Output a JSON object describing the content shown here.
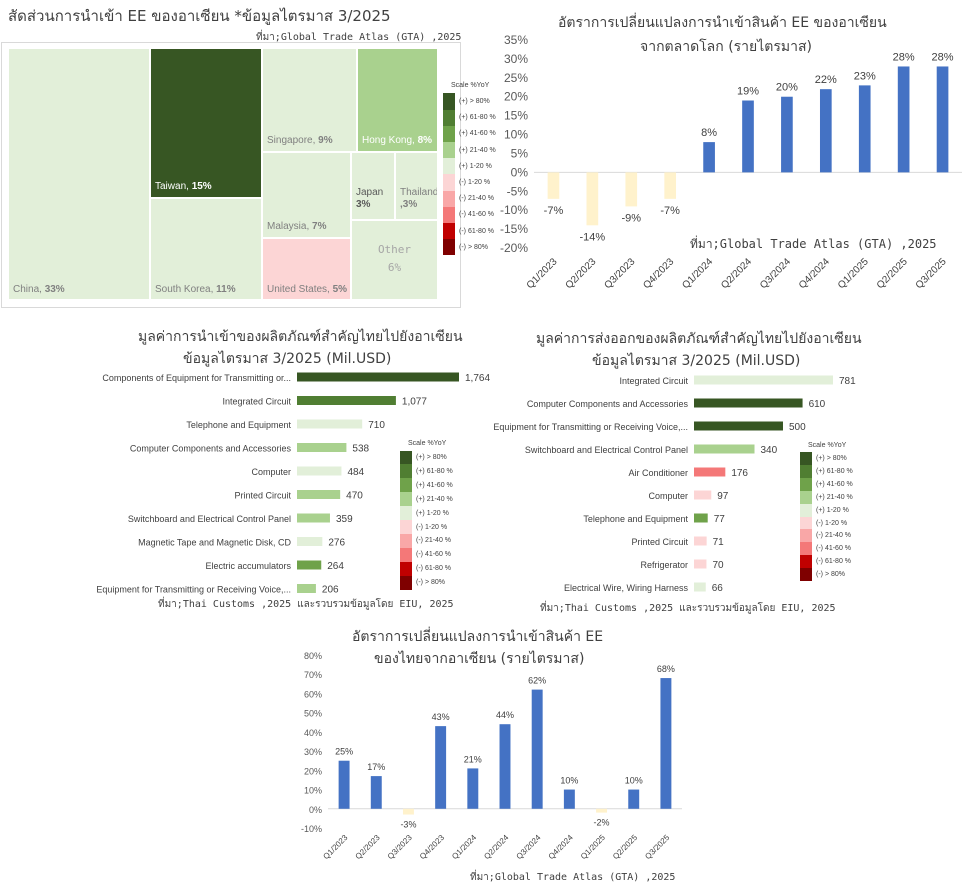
{
  "colors": {
    "pos_80": "#375623",
    "pos_61_80": "#507e32",
    "pos_41_60": "#6fa24a",
    "pos_21_40": "#a9d18e",
    "pos_1_20": "#e2efd9",
    "neg_1_20": "#fcd5d5",
    "neg_21_40": "#f9a7a7",
    "neg_41_60": "#f47878",
    "neg_61_80": "#c00000",
    "neg_80": "#7f0000",
    "bar_blue": "#4472c4",
    "bar_negative": "#fff2cc"
  },
  "scale_legend": {
    "title": "Scale %YoY",
    "items": [
      "(+) > 80%",
      "(+) 61-80 %",
      "(+) 41-60 %",
      "(+) 21-40 %",
      "(+) 1-20 %",
      "(-) 1-20 %",
      "(-) 21-40 %",
      "(-) 41-60 %",
      "(-) 61-80 %",
      "(-) > 80%"
    ],
    "items_alt": [
      "(+) > 80%",
      "(+) 61-80 %",
      "(+) 41-60 %",
      "(+) 21-40 %",
      "(+) 1-20 %",
      "(-) 1-20 %",
      "(-) 21-40 %",
      "(-) 41-60 %",
      "(-) 61-80 %",
      "(-) > 80%"
    ],
    "items_small": [
      "(+) > 80%",
      "(+) 61-80 %",
      "(+) 41-60 %",
      "(+) 21-40 %",
      "(+) 1-20 %",
      "(-) 1-20 %",
      "(-) 21-40 %",
      "(-) 41-60 %",
      "(-) 61-80 %",
      "(-) > 80%"
    ]
  },
  "panel1": {
    "title": "สัดส่วนการนำเข้า EE ของอาเซียน *ข้อมูลไตรมาส 3/2025",
    "source": "ที่มา;Global Trade Atlas (GTA) ,2025"
  },
  "panel2": {
    "title_line1": "อัตราการเปลี่ยนแปลงการนำเข้าสินค้า EE ของอาเซียน",
    "title_line2": "จากตลาดโลก (รายไตรมาส)",
    "source": "ที่มา;Global Trade Atlas (GTA) ,2025"
  },
  "panel3": {
    "title_line1": "มูลค่าการนำเข้าของผลิตภัณฑ์สำคัญไทยไปยังอาเซียน",
    "title_line2": "ข้อมูลไตรมาส 3/2025 (Mil.USD)",
    "source": "ที่มา;Thai Customs ,2025 และรวบรวมข้อมูลโดย EIU, 2025"
  },
  "panel4": {
    "title_line1": "มูลค่าการส่งออกของผลิตภัณฑ์สำคัญไทยไปยังอาเซียน",
    "title_line2": "ข้อมูลไตรมาส 3/2025 (Mil.USD)",
    "source": "ที่มา;Thai Customs ,2025 และรวบรวมข้อมูลโดย EIU, 2025"
  },
  "panel5": {
    "title_line1": "อัตราการเปลี่ยนแปลงการนำเข้าสินค้า EE",
    "title_line2": "ของไทยจากอาเซียน (รายไตรมาส)",
    "source": "ที่มา;Global Trade Atlas (GTA) ,2025"
  },
  "chart_data": [
    {
      "type": "treemap",
      "title": "สัดส่วนการนำเข้า EE ของอาเซียน *ข้อมูลไตรมาส 3/2025",
      "items": [
        {
          "name": "China",
          "share": "33%",
          "value": 33,
          "scale": "pos_1_20"
        },
        {
          "name": "Taiwan",
          "share": "15%",
          "value": 15,
          "scale": "pos_80"
        },
        {
          "name": "South Korea",
          "share": "11%",
          "value": 11,
          "scale": "pos_1_20"
        },
        {
          "name": "Singapore",
          "share": "9%",
          "value": 9,
          "scale": "pos_1_20"
        },
        {
          "name": "Hong Kong",
          "share": "8%",
          "value": 8,
          "scale": "pos_21_40"
        },
        {
          "name": "Malaysia",
          "share": "7%",
          "value": 7,
          "scale": "pos_1_20"
        },
        {
          "name": "United States",
          "share": "5%",
          "value": 5,
          "scale": "neg_1_20"
        },
        {
          "name": "Japan",
          "share": "3%",
          "value": 3,
          "scale": "pos_1_20"
        },
        {
          "name": "Thailand",
          "share": ",3%",
          "value": 3,
          "scale": "pos_1_20"
        },
        {
          "name": "Other",
          "share": "6%",
          "value": 6,
          "scale": "pos_1_20"
        }
      ]
    },
    {
      "type": "bar",
      "title": "อัตราการเปลี่ยนแปลงการนำเข้าสินค้า EE ของอาเซียน จากตลาดโลก (รายไตรมาส)",
      "categories": [
        "Q1/2023",
        "Q2/2023",
        "Q3/2023",
        "Q4/2023",
        "Q1/2024",
        "Q2/2024",
        "Q3/2024",
        "Q4/2024",
        "Q1/2025",
        "Q2/2025",
        "Q3/2025"
      ],
      "values": [
        -7,
        -14,
        -9,
        -7,
        8,
        19,
        20,
        22,
        23,
        28,
        28
      ],
      "value_labels": [
        "-7%",
        "-14%",
        "-9%",
        "-7%",
        "8%",
        "19%",
        "20%",
        "22%",
        "23%",
        "28%",
        "28%"
      ],
      "ylim": [
        -20,
        35
      ],
      "yticks": [
        "35%",
        "30%",
        "25%",
        "20%",
        "15%",
        "10%",
        "5%",
        "0%",
        "-5%",
        "-10%",
        "-15%",
        "-20%"
      ]
    },
    {
      "type": "bar",
      "orientation": "horizontal",
      "title": "มูลค่าการนำเข้าของผลิตภัณฑ์สำคัญไทยไปยังอาเซียน ข้อมูลไตรมาส 3/2025 (Mil.USD)",
      "categories": [
        "Components of Equipment for Transmitting or...",
        "Integrated Circuit",
        "Telephone and Equipment",
        "Computer Components and Accessories",
        "Computer",
        "Printed Circuit",
        "Switchboard and Electrical Control Panel",
        "Magnetic Tape and Magnetic Disk, CD",
        "Electric accumulators",
        "Equipment for Transmitting or Receiving Voice,..."
      ],
      "values": [
        1764,
        1077,
        710,
        538,
        484,
        470,
        359,
        276,
        264,
        206
      ],
      "value_labels": [
        "1,764",
        "1,077",
        "710",
        "538",
        "484",
        "470",
        "359",
        "276",
        "264",
        "206"
      ],
      "scales": [
        "pos_80",
        "pos_61_80",
        "pos_1_20",
        "pos_21_40",
        "pos_1_20",
        "pos_21_40",
        "pos_21_40",
        "pos_1_20",
        "pos_41_60",
        "pos_21_40"
      ]
    },
    {
      "type": "bar",
      "orientation": "horizontal",
      "title": "มูลค่าการส่งออกของผลิตภัณฑ์สำคัญไทยไปยังอาเซียน ข้อมูลไตรมาส 3/2025 (Mil.USD)",
      "categories": [
        "Integrated Circuit",
        "Computer Components and Accessories",
        "Equipment for Transmitting or Receiving Voice,...",
        "Switchboard and Electrical Control Panel",
        "Air Conditioner",
        "Computer",
        "Telephone and Equipment",
        "Printed Circuit",
        "Refrigerator",
        "Electrical Wire, Wiring Harness"
      ],
      "values": [
        781,
        610,
        500,
        340,
        176,
        97,
        77,
        71,
        70,
        66
      ],
      "value_labels": [
        "781",
        "610",
        "500",
        "340",
        "176",
        "97",
        "77",
        "71",
        "70",
        "66"
      ],
      "scales": [
        "pos_1_20",
        "pos_80",
        "pos_80",
        "pos_21_40",
        "neg_41_60",
        "neg_1_20",
        "pos_41_60",
        "neg_1_20",
        "neg_1_20",
        "pos_1_20"
      ]
    },
    {
      "type": "bar",
      "title": "อัตราการเปลี่ยนแปลงการนำเข้าสินค้า EE ของไทยจากอาเซียน (รายไตรมาส)",
      "categories": [
        "Q1/2023",
        "Q2/2023",
        "Q3/2023",
        "Q4/2023",
        "Q1/2024",
        "Q2/2024",
        "Q3/2024",
        "Q4/2024",
        "Q1/2025",
        "Q2/2025",
        "Q3/2025"
      ],
      "values": [
        25,
        17,
        -3,
        43,
        21,
        44,
        62,
        10,
        -2,
        10,
        68
      ],
      "value_labels": [
        "25%",
        "17%",
        "-3%",
        "43%",
        "21%",
        "44%",
        "62%",
        "10%",
        "-2%",
        "10%",
        "68%"
      ],
      "ylim": [
        -10,
        80
      ],
      "yticks": [
        "80%",
        "70%",
        "60%",
        "50%",
        "40%",
        "30%",
        "20%",
        "10%",
        "0%",
        "-10%"
      ]
    }
  ]
}
